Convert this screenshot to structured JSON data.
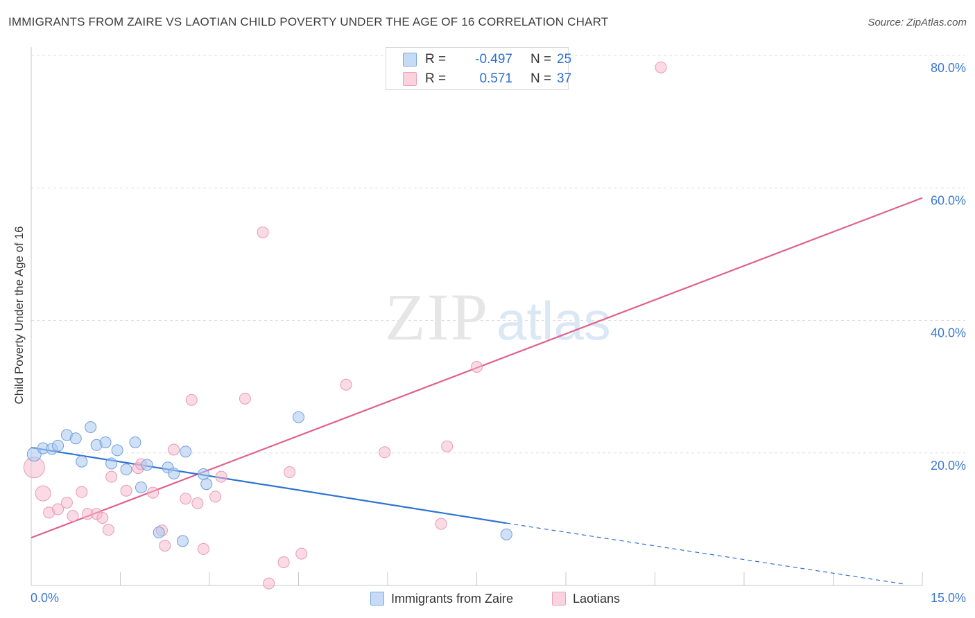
{
  "title": "IMMIGRANTS FROM ZAIRE VS LAOTIAN CHILD POVERTY UNDER THE AGE OF 16 CORRELATION CHART",
  "source": "Source: ZipAtlas.com",
  "watermark": {
    "zip": "ZIP",
    "atlas": "atlas"
  },
  "stats": [
    {
      "r_label": "R =",
      "r_value": "-0.497",
      "n_label": "N =",
      "n_value": "25",
      "color": "#a9c8f0"
    },
    {
      "r_label": "R =",
      "r_value": "0.571",
      "n_label": "N =",
      "n_value": "37",
      "color": "#f6b8cb"
    }
  ],
  "legend": [
    {
      "label": "Immigrants from Zaire",
      "color": "#a9c8f0"
    },
    {
      "label": "Laotians",
      "color": "#f6b8cb"
    }
  ],
  "colors": {
    "zaire_fill": "rgba(169,200,240,0.55)",
    "zaire_stroke": "#6f9fd8",
    "zaire_line": "#2e73d2",
    "laotian_fill": "rgba(246,184,203,0.5)",
    "laotian_stroke": "#e89ab3",
    "laotian_line": "#e0608c",
    "axis_tick_label": "#3b78d0",
    "grid": "#dcdcdc"
  },
  "chart_data": {
    "type": "scatter",
    "title": "IMMIGRANTS FROM ZAIRE VS LAOTIAN CHILD POVERTY UNDER THE AGE OF 16 CORRELATION CHART",
    "xlabel": "",
    "ylabel": "Child Poverty Under the Age of 16",
    "xlim": [
      0,
      15
    ],
    "ylim": [
      0,
      80
    ],
    "x_tick_labels": [
      "0.0%",
      "15.0%"
    ],
    "y_ticks": [
      20,
      40,
      60,
      80
    ],
    "y_tick_labels": [
      "20.0%",
      "40.0%",
      "60.0%",
      "80.0%"
    ],
    "grid": "horizontal dashed",
    "legend_position": "bottom",
    "series": [
      {
        "name": "Immigrants from Zaire",
        "points": [
          [
            0.05,
            19.8
          ],
          [
            0.2,
            20.7
          ],
          [
            0.35,
            20.6
          ],
          [
            0.45,
            21.1
          ],
          [
            0.6,
            22.7
          ],
          [
            0.75,
            22.2
          ],
          [
            0.85,
            18.7
          ],
          [
            1.0,
            23.9
          ],
          [
            1.1,
            21.2
          ],
          [
            1.25,
            21.6
          ],
          [
            1.35,
            18.4
          ],
          [
            1.45,
            20.4
          ],
          [
            1.6,
            17.5
          ],
          [
            1.75,
            21.6
          ],
          [
            1.85,
            14.8
          ],
          [
            1.95,
            18.2
          ],
          [
            2.15,
            8.0
          ],
          [
            2.3,
            17.8
          ],
          [
            2.4,
            16.9
          ],
          [
            2.55,
            6.7
          ],
          [
            2.6,
            20.2
          ],
          [
            2.9,
            16.8
          ],
          [
            2.95,
            15.3
          ],
          [
            4.5,
            25.4
          ],
          [
            8.0,
            7.7
          ]
        ],
        "big_points": [
          [
            0.05,
            19.8
          ]
        ],
        "trend": {
          "x": [
            0,
            8.0
          ],
          "y": [
            20.8,
            9.4
          ]
        },
        "trend_dashed": {
          "x": [
            8.0,
            14.7
          ],
          "y": [
            9.4,
            0.2
          ]
        }
      },
      {
        "name": "Laotians",
        "points": [
          [
            0.05,
            17.8
          ],
          [
            0.2,
            13.9
          ],
          [
            0.3,
            11.0
          ],
          [
            0.45,
            11.5
          ],
          [
            0.6,
            12.5
          ],
          [
            0.7,
            10.5
          ],
          [
            0.85,
            14.1
          ],
          [
            0.95,
            10.8
          ],
          [
            1.1,
            10.8
          ],
          [
            1.2,
            10.2
          ],
          [
            1.3,
            8.4
          ],
          [
            1.35,
            16.4
          ],
          [
            1.6,
            14.3
          ],
          [
            1.8,
            17.7
          ],
          [
            1.85,
            18.3
          ],
          [
            2.05,
            14.0
          ],
          [
            2.2,
            8.3
          ],
          [
            2.25,
            6.0
          ],
          [
            2.4,
            20.5
          ],
          [
            2.6,
            13.1
          ],
          [
            2.7,
            28.0
          ],
          [
            2.8,
            12.4
          ],
          [
            2.9,
            5.5
          ],
          [
            3.1,
            13.4
          ],
          [
            3.2,
            16.4
          ],
          [
            3.6,
            28.2
          ],
          [
            3.9,
            53.3
          ],
          [
            4.0,
            0.3
          ],
          [
            4.25,
            3.5
          ],
          [
            4.35,
            17.1
          ],
          [
            4.55,
            4.8
          ],
          [
            5.3,
            30.3
          ],
          [
            5.95,
            20.1
          ],
          [
            6.9,
            9.3
          ],
          [
            7.0,
            21.0
          ],
          [
            7.5,
            33.0
          ],
          [
            10.6,
            78.2
          ]
        ],
        "big_points": [
          [
            0.05,
            17.8
          ],
          [
            0.2,
            13.9
          ]
        ],
        "trend": {
          "x": [
            0,
            15
          ],
          "y": [
            7.2,
            58.5
          ]
        }
      }
    ]
  }
}
